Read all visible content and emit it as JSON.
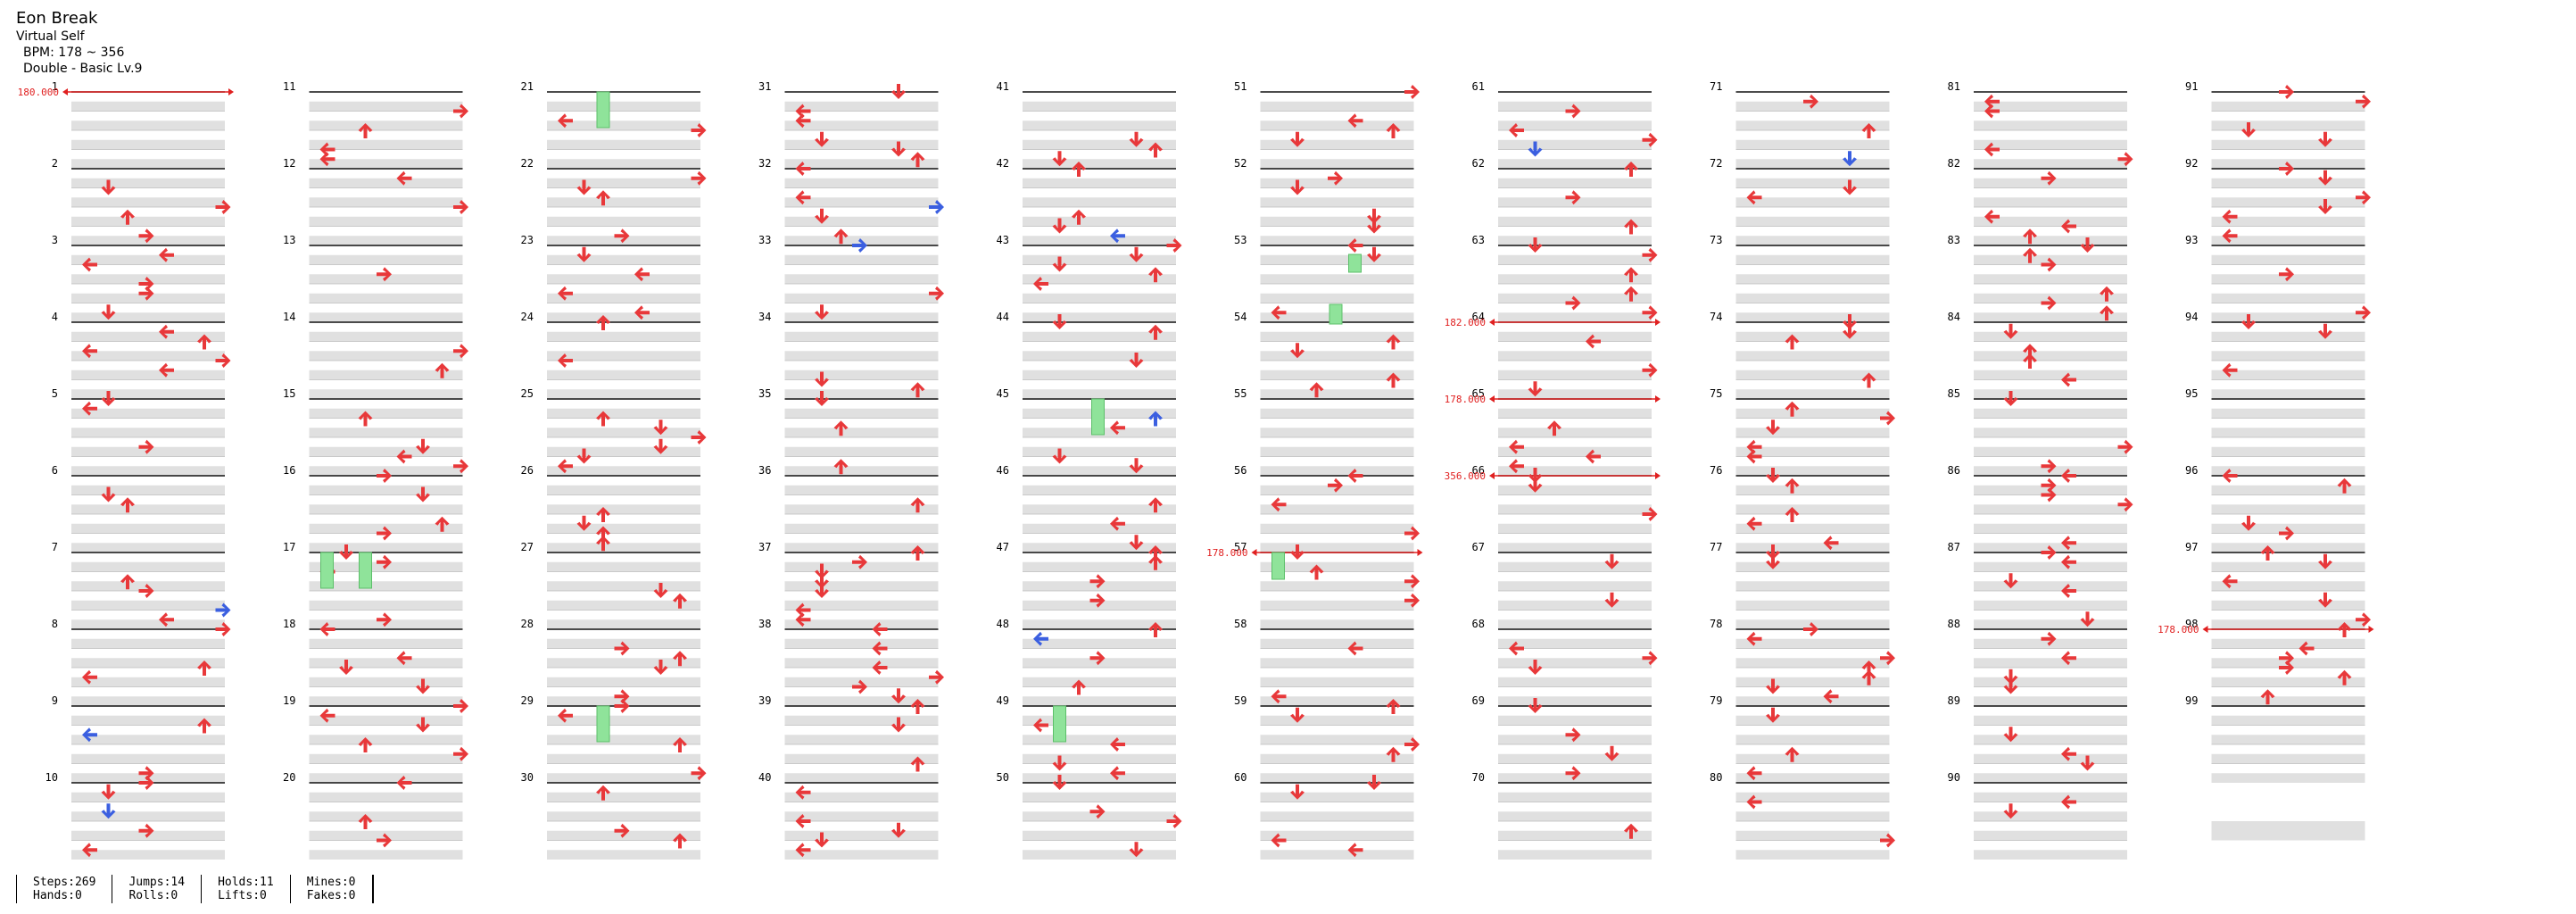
{
  "header": {
    "title": "Eon Break",
    "artist": "Virtual Self",
    "bpm": "BPM: 178 ~ 356",
    "chart_info": "Double - Basic Lv.9"
  },
  "colors": {
    "arrow": "#e8383a",
    "mine_blue": "#3b5fe0",
    "hold": "#8fe39a",
    "bpm_line": "#e02020",
    "lane_shade": "#e0e0e0"
  },
  "measures": [
    "1",
    "2",
    "3",
    "4",
    "5",
    "6",
    "7",
    "8",
    "9",
    "10",
    "11",
    "12",
    "13",
    "14",
    "15",
    "16",
    "17",
    "18",
    "19",
    "20",
    "21",
    "22",
    "23",
    "24",
    "25",
    "26",
    "27",
    "28",
    "29",
    "30",
    "31",
    "32",
    "33",
    "34",
    "35",
    "36",
    "37",
    "38",
    "39",
    "40",
    "41",
    "42",
    "43",
    "44",
    "45",
    "46",
    "47",
    "48",
    "49",
    "50",
    "51",
    "52",
    "53",
    "54",
    "55",
    "56",
    "57",
    "58",
    "59",
    "60",
    "61",
    "62",
    "63",
    "64",
    "65",
    "66",
    "67",
    "68",
    "69",
    "70",
    "71",
    "72",
    "73",
    "74",
    "75",
    "76",
    "77",
    "78",
    "79",
    "80",
    "81",
    "82",
    "83",
    "84",
    "85",
    "86",
    "87",
    "88",
    "89",
    "90",
    "91",
    "92",
    "93",
    "94",
    "95",
    "96",
    "97",
    "98",
    "99"
  ],
  "bpm_changes": [
    {
      "measure": 1,
      "label": "180.000"
    },
    {
      "measure": 57,
      "label": "178.000"
    },
    {
      "measure": 64,
      "label": "182.000"
    },
    {
      "measure": 65,
      "label": "178.000"
    },
    {
      "measure": 66,
      "label": "356.000"
    },
    {
      "measure": 98,
      "label": "178.000"
    }
  ],
  "stats": {
    "steps": "Steps:269",
    "hands": "Hands:0",
    "jumps": "Jumps:14",
    "rolls": "Rolls:0",
    "holds": "Holds:11",
    "lifts": "Lifts:0",
    "mines": "Mines:0",
    "fakes": "Fakes:0"
  }
}
